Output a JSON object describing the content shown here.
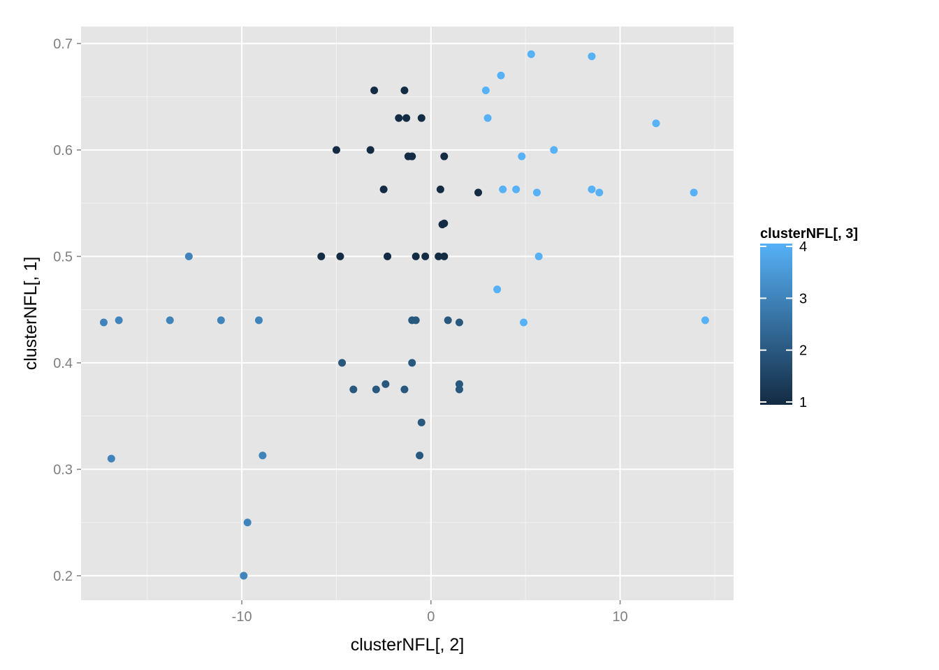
{
  "chart_data": {
    "type": "scatter",
    "xlabel": "clusterNFL[, 2]",
    "ylabel": "clusterNFL[, 1]",
    "xlim": [
      -18.5,
      16.0
    ],
    "ylim": [
      0.177,
      0.716
    ],
    "x_ticks": [
      -10,
      0,
      10
    ],
    "x_tick_labels": [
      "-10",
      "0",
      "10"
    ],
    "y_ticks": [
      0.2,
      0.3,
      0.4,
      0.5,
      0.6,
      0.7
    ],
    "y_tick_labels": [
      "0.2",
      "0.3",
      "0.4",
      "0.5",
      "0.6",
      "0.7"
    ],
    "grid": true,
    "background": "#e5e5e5",
    "color_scale": {
      "title": "clusterNFL[, 3]",
      "min": 1,
      "max": 4,
      "low_color": "#132b43",
      "high_color": "#56b1f7",
      "ticks": [
        1,
        2,
        3,
        4
      ],
      "tick_labels": [
        "1",
        "2",
        "3",
        "4"
      ],
      "legend_position": "right"
    },
    "points": [
      {
        "x": 5.3,
        "y": 0.69,
        "c": 4
      },
      {
        "x": 8.5,
        "y": 0.688,
        "c": 4
      },
      {
        "x": 3.7,
        "y": 0.67,
        "c": 4
      },
      {
        "x": 2.9,
        "y": 0.656,
        "c": 4
      },
      {
        "x": 3.0,
        "y": 0.63,
        "c": 4
      },
      {
        "x": 11.9,
        "y": 0.625,
        "c": 4
      },
      {
        "x": 6.5,
        "y": 0.6,
        "c": 4
      },
      {
        "x": 4.8,
        "y": 0.594,
        "c": 4
      },
      {
        "x": 3.8,
        "y": 0.563,
        "c": 4
      },
      {
        "x": 4.5,
        "y": 0.563,
        "c": 4
      },
      {
        "x": 5.6,
        "y": 0.56,
        "c": 4
      },
      {
        "x": 8.5,
        "y": 0.563,
        "c": 4
      },
      {
        "x": 8.9,
        "y": 0.56,
        "c": 4
      },
      {
        "x": 13.9,
        "y": 0.56,
        "c": 4
      },
      {
        "x": 5.7,
        "y": 0.5,
        "c": 4
      },
      {
        "x": 3.5,
        "y": 0.469,
        "c": 4
      },
      {
        "x": 4.9,
        "y": 0.438,
        "c": 4
      },
      {
        "x": 14.5,
        "y": 0.44,
        "c": 4
      },
      {
        "x": -3.0,
        "y": 0.656,
        "c": 1
      },
      {
        "x": -1.4,
        "y": 0.656,
        "c": 1
      },
      {
        "x": -1.7,
        "y": 0.63,
        "c": 1
      },
      {
        "x": -1.3,
        "y": 0.63,
        "c": 1
      },
      {
        "x": -0.5,
        "y": 0.63,
        "c": 1
      },
      {
        "x": -5.0,
        "y": 0.6,
        "c": 1
      },
      {
        "x": -3.2,
        "y": 0.6,
        "c": 1
      },
      {
        "x": -1.2,
        "y": 0.594,
        "c": 1
      },
      {
        "x": -1.0,
        "y": 0.594,
        "c": 1
      },
      {
        "x": 0.7,
        "y": 0.594,
        "c": 1
      },
      {
        "x": -2.5,
        "y": 0.563,
        "c": 1
      },
      {
        "x": 0.5,
        "y": 0.563,
        "c": 1
      },
      {
        "x": 2.5,
        "y": 0.56,
        "c": 1
      },
      {
        "x": 0.6,
        "y": 0.53,
        "c": 1
      },
      {
        "x": 0.7,
        "y": 0.531,
        "c": 1
      },
      {
        "x": -5.8,
        "y": 0.5,
        "c": 1
      },
      {
        "x": -4.8,
        "y": 0.5,
        "c": 1
      },
      {
        "x": -2.3,
        "y": 0.5,
        "c": 1
      },
      {
        "x": -0.8,
        "y": 0.5,
        "c": 1
      },
      {
        "x": -0.3,
        "y": 0.5,
        "c": 1
      },
      {
        "x": 0.4,
        "y": 0.5,
        "c": 1
      },
      {
        "x": 0.7,
        "y": 0.5,
        "c": 1
      },
      {
        "x": -12.8,
        "y": 0.5,
        "c": 3
      },
      {
        "x": -17.3,
        "y": 0.438,
        "c": 3
      },
      {
        "x": -16.5,
        "y": 0.44,
        "c": 3
      },
      {
        "x": -13.8,
        "y": 0.44,
        "c": 3
      },
      {
        "x": -11.1,
        "y": 0.44,
        "c": 3
      },
      {
        "x": -9.1,
        "y": 0.44,
        "c": 3
      },
      {
        "x": -16.9,
        "y": 0.31,
        "c": 3
      },
      {
        "x": -8.9,
        "y": 0.313,
        "c": 3
      },
      {
        "x": -9.7,
        "y": 0.25,
        "c": 3
      },
      {
        "x": -9.9,
        "y": 0.2,
        "c": 3
      },
      {
        "x": -1.0,
        "y": 0.44,
        "c": 2
      },
      {
        "x": -0.8,
        "y": 0.44,
        "c": 2
      },
      {
        "x": 0.9,
        "y": 0.44,
        "c": 2
      },
      {
        "x": 1.5,
        "y": 0.438,
        "c": 2
      },
      {
        "x": -4.7,
        "y": 0.4,
        "c": 2
      },
      {
        "x": -1.0,
        "y": 0.4,
        "c": 2
      },
      {
        "x": -4.1,
        "y": 0.375,
        "c": 2
      },
      {
        "x": -2.9,
        "y": 0.375,
        "c": 2
      },
      {
        "x": -2.4,
        "y": 0.38,
        "c": 2
      },
      {
        "x": -1.4,
        "y": 0.375,
        "c": 2
      },
      {
        "x": 1.5,
        "y": 0.38,
        "c": 2
      },
      {
        "x": 1.5,
        "y": 0.375,
        "c": 2
      },
      {
        "x": -0.5,
        "y": 0.344,
        "c": 2
      },
      {
        "x": -0.6,
        "y": 0.313,
        "c": 2
      }
    ]
  }
}
